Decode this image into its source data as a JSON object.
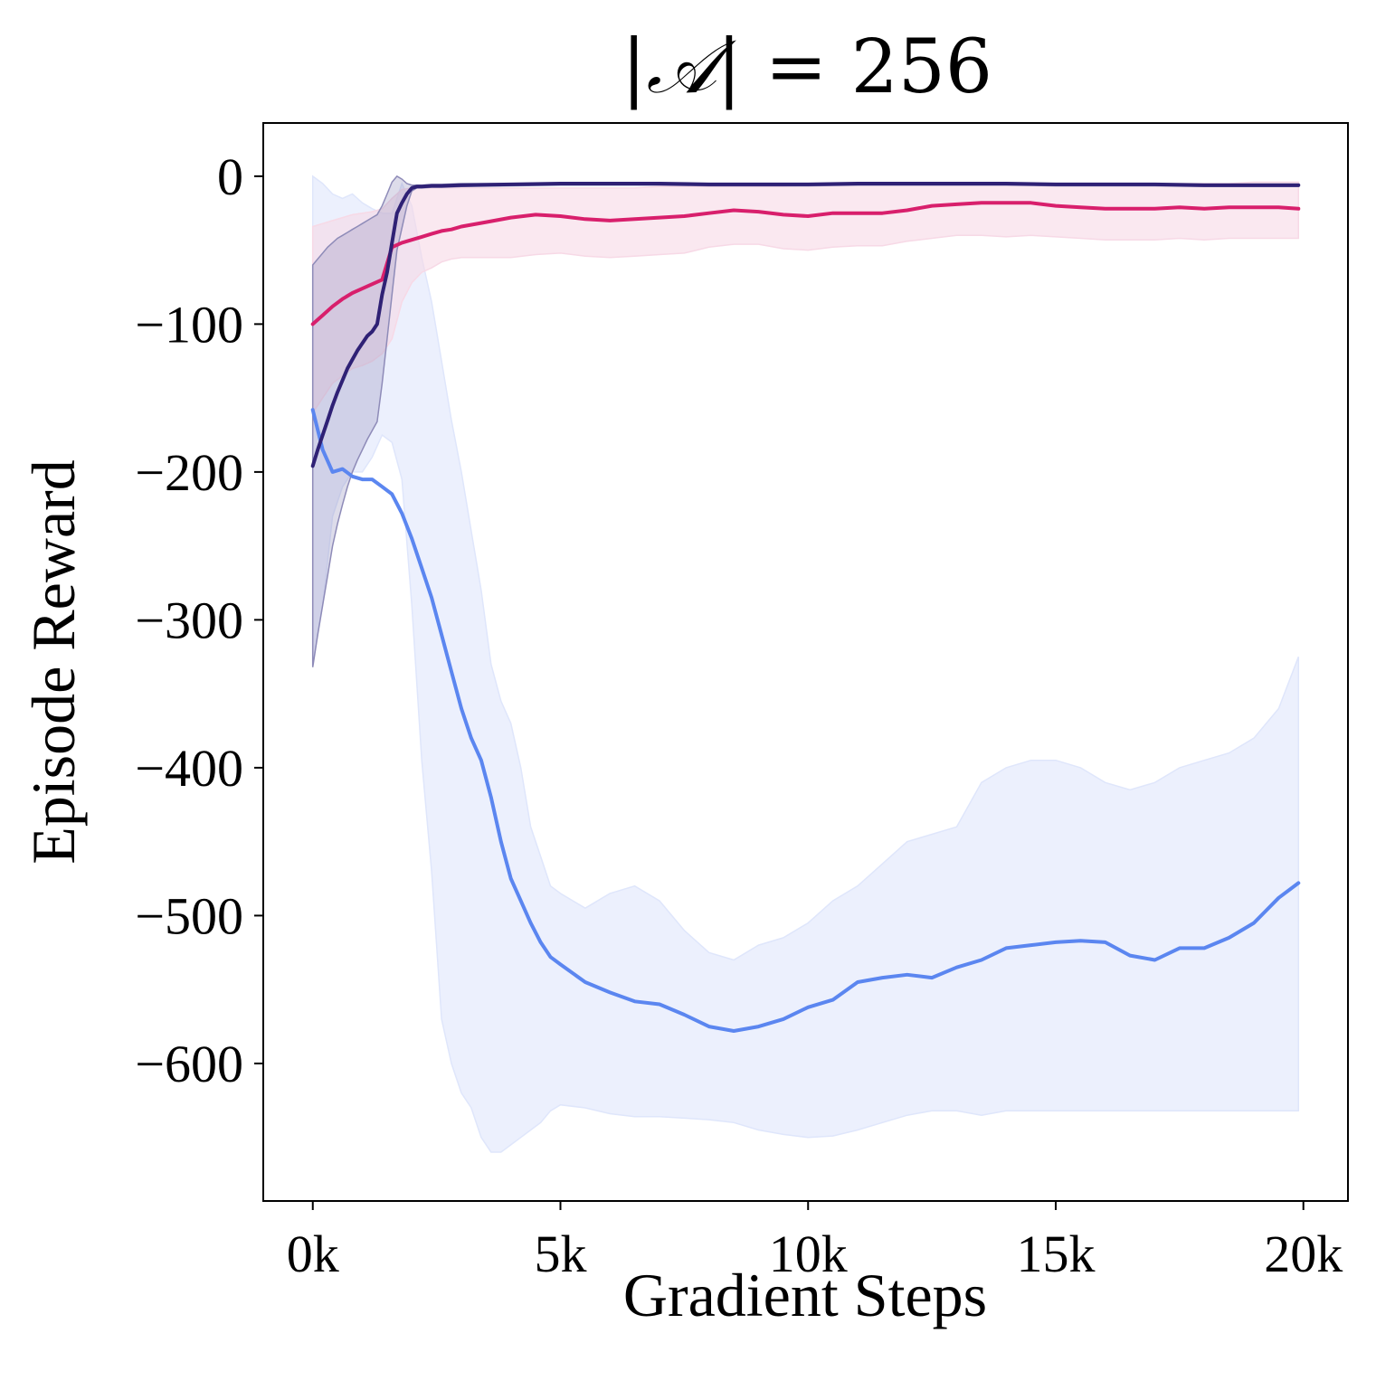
{
  "chart_data": {
    "type": "line",
    "title_left": "|",
    "title_symbol": "𝒜",
    "title_right": "| =  256",
    "xlabel": "Gradient Steps",
    "ylabel": "Episode Reward",
    "xlim": [
      -1000,
      20900
    ],
    "ylim": [
      -693,
      36
    ],
    "xticks": [
      0,
      5000,
      10000,
      15000,
      20000
    ],
    "xtick_labels": [
      "0k",
      "5k",
      "10k",
      "15k",
      "20k"
    ],
    "yticks": [
      0,
      -100,
      -200,
      -300,
      -400,
      -500,
      -600
    ],
    "ytick_labels": [
      "0",
      "−100",
      "−200",
      "−300",
      "−400",
      "−500",
      "−600"
    ],
    "grid": false,
    "legend": "none",
    "series": [
      {
        "color": "#5b86f0",
        "band_color": "#dfe6fb",
        "x": [
          0,
          200,
          400,
          600,
          800,
          1000,
          1200,
          1400,
          1600,
          1800,
          2000,
          2200,
          2400,
          2600,
          2800,
          3000,
          3200,
          3400,
          3600,
          3800,
          4000,
          4200,
          4400,
          4600,
          4800,
          5000,
          5500,
          6000,
          6500,
          7000,
          7500,
          8000,
          8500,
          9000,
          9500,
          10000,
          10500,
          11000,
          11500,
          12000,
          12500,
          13000,
          13500,
          14000,
          14500,
          15000,
          15500,
          16000,
          16500,
          17000,
          17500,
          18000,
          18500,
          19000,
          19500,
          19900
        ],
        "mean": [
          -158,
          -185,
          -200,
          -198,
          -203,
          -205,
          -205,
          -210,
          -215,
          -228,
          -245,
          -265,
          -285,
          -310,
          -335,
          -360,
          -380,
          -395,
          -420,
          -450,
          -475,
          -490,
          -505,
          -518,
          -528,
          -533,
          -545,
          -552,
          -558,
          -560,
          -567,
          -575,
          -578,
          -575,
          -570,
          -562,
          -557,
          -545,
          -542,
          -540,
          -542,
          -535,
          -530,
          -522,
          -520,
          -518,
          -517,
          -518,
          -527,
          -530,
          -522,
          -522,
          -515,
          -505,
          -488,
          -478
        ],
        "upper": [
          0,
          -5,
          -12,
          -15,
          -12,
          -18,
          -22,
          -25,
          -25,
          -5,
          -20,
          -55,
          -85,
          -125,
          -165,
          -200,
          -240,
          -280,
          -330,
          -355,
          -370,
          -400,
          -440,
          -460,
          -480,
          -485,
          -495,
          -485,
          -480,
          -490,
          -510,
          -525,
          -530,
          -520,
          -515,
          -505,
          -490,
          -480,
          -465,
          -450,
          -445,
          -440,
          -410,
          -400,
          -395,
          -395,
          -400,
          -410,
          -415,
          -410,
          -400,
          -395,
          -390,
          -380,
          -360,
          -325
        ],
        "lower": [
          -330,
          -290,
          -230,
          -210,
          -200,
          -200,
          -190,
          -175,
          -180,
          -205,
          -290,
          -395,
          -470,
          -570,
          -600,
          -620,
          -630,
          -650,
          -660,
          -660,
          -655,
          -650,
          -645,
          -640,
          -632,
          -628,
          -630,
          -634,
          -636,
          -636,
          -637,
          -638,
          -640,
          -645,
          -648,
          -650,
          -649,
          -645,
          -640,
          -635,
          -632,
          -632,
          -635,
          -632,
          -632,
          -632,
          -632,
          -632,
          -632,
          -632,
          -632,
          -632,
          -632,
          -632,
          -632,
          -632
        ]
      },
      {
        "color": "#d81f6c",
        "band_color": "#f7d9e6",
        "x": [
          0,
          200,
          400,
          600,
          800,
          1000,
          1200,
          1400,
          1600,
          1800,
          2000,
          2200,
          2400,
          2600,
          2800,
          3000,
          3500,
          4000,
          4500,
          5000,
          5500,
          6000,
          6500,
          7000,
          7500,
          8000,
          8500,
          9000,
          9500,
          10000,
          10500,
          11000,
          11500,
          12000,
          12500,
          13000,
          13500,
          14000,
          14500,
          15000,
          15500,
          16000,
          16500,
          17000,
          17500,
          18000,
          18500,
          19000,
          19500,
          19900
        ],
        "mean": [
          -100,
          -94,
          -88,
          -83,
          -79,
          -76,
          -73,
          -70,
          -48,
          -45,
          -43,
          -41,
          -39,
          -37,
          -36,
          -34,
          -31,
          -28,
          -26,
          -27,
          -29,
          -30,
          -29,
          -28,
          -27,
          -25,
          -23,
          -24,
          -26,
          -27,
          -25,
          -25,
          -25,
          -23,
          -20,
          -19,
          -18,
          -18,
          -18,
          -20,
          -21,
          -22,
          -22,
          -22,
          -21,
          -22,
          -21,
          -21,
          -21,
          -22
        ],
        "upper": [
          -34,
          -32,
          -30,
          -28,
          -26,
          -25,
          -24,
          -22,
          -15,
          -9,
          -8,
          -8,
          -8,
          -8,
          -8,
          -8,
          -8,
          -8,
          -8,
          -8,
          -8,
          -8,
          -8,
          -7,
          -7,
          -7,
          -7,
          -7,
          -7,
          -6,
          -6,
          -6,
          -6,
          -6,
          -5,
          -5,
          -5,
          -5,
          -5,
          -5,
          -5,
          -5,
          -5,
          -5,
          -5,
          -5,
          -5,
          -4,
          -4,
          -4
        ],
        "lower": [
          -160,
          -150,
          -140,
          -135,
          -130,
          -128,
          -125,
          -120,
          -110,
          -85,
          -72,
          -65,
          -62,
          -58,
          -56,
          -55,
          -55,
          -55,
          -53,
          -52,
          -54,
          -55,
          -54,
          -53,
          -52,
          -48,
          -46,
          -46,
          -49,
          -50,
          -48,
          -47,
          -47,
          -44,
          -42,
          -40,
          -40,
          -41,
          -40,
          -41,
          -42,
          -43,
          -43,
          -43,
          -42,
          -43,
          -42,
          -42,
          -42,
          -42
        ]
      },
      {
        "color": "#2f2175",
        "band_color": "#8e8bb8",
        "x": [
          0,
          100,
          200,
          300,
          400,
          500,
          600,
          700,
          800,
          900,
          1000,
          1100,
          1200,
          1300,
          1400,
          1500,
          1600,
          1700,
          1800,
          1900,
          2000,
          2100,
          2200,
          2400,
          2600,
          3000,
          4000,
          5000,
          6000,
          7000,
          8000,
          9000,
          10000,
          11000,
          12000,
          13000,
          14000,
          15000,
          16000,
          17000,
          18000,
          19000,
          19900
        ],
        "mean": [
          -196,
          -185,
          -175,
          -165,
          -155,
          -146,
          -138,
          -130,
          -124,
          -118,
          -113,
          -108,
          -105,
          -100,
          -80,
          -65,
          -45,
          -25,
          -18,
          -12,
          -8,
          -7,
          -7,
          -6.5,
          -6.5,
          -6,
          -5.5,
          -5,
          -5,
          -5,
          -5.5,
          -5.5,
          -5.5,
          -5,
          -5,
          -5,
          -5,
          -5.5,
          -5.5,
          -5.5,
          -6,
          -6,
          -6
        ],
        "upper": [
          -60,
          -56,
          -52,
          -48,
          -45,
          -42,
          -40,
          -38,
          -36,
          -34,
          -32,
          -30,
          -28,
          -26,
          -20,
          -12,
          -4,
          0,
          -2,
          -5,
          -6,
          -6,
          -6,
          -5.5,
          -5.5,
          -5,
          -5,
          -4.5,
          -4.5,
          -4.5,
          -5,
          -5,
          -5,
          -4.5,
          -4.5,
          -4.5,
          -4.5,
          -5,
          -5,
          -5,
          -5.5,
          -5.5,
          -5.5
        ],
        "lower": [
          -332,
          -310,
          -290,
          -270,
          -250,
          -235,
          -222,
          -210,
          -200,
          -192,
          -185,
          -178,
          -172,
          -166,
          -140,
          -110,
          -80,
          -50,
          -35,
          -20,
          -10,
          -8,
          -8,
          -7.5,
          -7.5,
          -7,
          -6.5,
          -6,
          -6,
          -6,
          -6.5,
          -6.5,
          -6.5,
          -6,
          -6,
          -6,
          -6,
          -6.5,
          -6.5,
          -6.5,
          -7,
          -7,
          -7
        ]
      }
    ]
  }
}
